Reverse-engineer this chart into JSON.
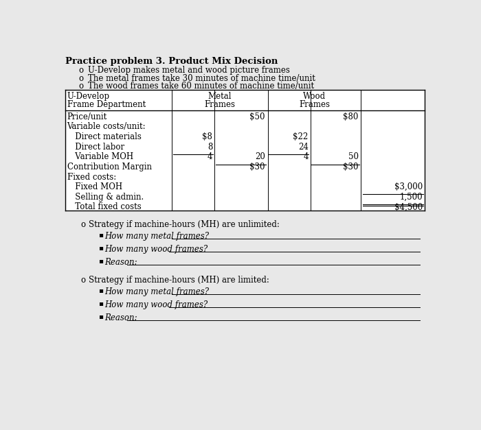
{
  "title": "Practice problem 3. Product Mix Decision",
  "bullets": [
    "U-Develop makes metal and wood picture frames",
    "The metal frames take 30 minutes of machine time/unit",
    "The wood frames take 60 minutes of machine time/unit"
  ],
  "bg_color": "#e8e8e8",
  "table_bg": "#ffffff",
  "rows": [
    {
      "label": "Price/unit",
      "m1": "",
      "m2": "$50",
      "w1": "",
      "w2": "$80",
      "extra": ""
    },
    {
      "label": "Variable costs/unit:",
      "m1": "",
      "m2": "",
      "w1": "",
      "w2": "",
      "extra": ""
    },
    {
      "label": "   Direct materials",
      "m1": "$8",
      "m2": "",
      "w1": "$22",
      "w2": "",
      "extra": ""
    },
    {
      "label": "   Direct labor",
      "m1": "8",
      "m2": "",
      "w1": "24",
      "w2": "",
      "extra": ""
    },
    {
      "label": "   Variable MOH",
      "m1": "4",
      "m2": "20",
      "w1": "4",
      "w2": "50",
      "extra": ""
    },
    {
      "label": "Contribution Margin",
      "m1": "",
      "m2": "$30",
      "w1": "",
      "w2": "$30",
      "extra": ""
    },
    {
      "label": "Fixed costs:",
      "m1": "",
      "m2": "",
      "w1": "",
      "w2": "",
      "extra": ""
    },
    {
      "label": "   Fixed MOH",
      "m1": "",
      "m2": "",
      "w1": "",
      "w2": "",
      "extra": "$3,000"
    },
    {
      "label": "   Selling & admin.",
      "m1": "",
      "m2": "",
      "w1": "",
      "w2": "",
      "extra": "1,500"
    },
    {
      "label": "   Total fixed costs",
      "m1": "",
      "m2": "",
      "w1": "",
      "w2": "",
      "extra": "$4,500"
    }
  ],
  "strategy_sections": [
    {
      "header": "Strategy if machine-hours (MH) are unlimited:",
      "items": [
        "How many metal frames?",
        "How many wood frames?",
        "Reason:"
      ]
    },
    {
      "header": "Strategy if machine-hours (MH) are limited:",
      "items": [
        "How many metal frames?",
        "How many wood frames?",
        "Reason:"
      ]
    }
  ],
  "font_size": 8.5,
  "title_font_size": 9.5,
  "font_family": "DejaVu Serif"
}
